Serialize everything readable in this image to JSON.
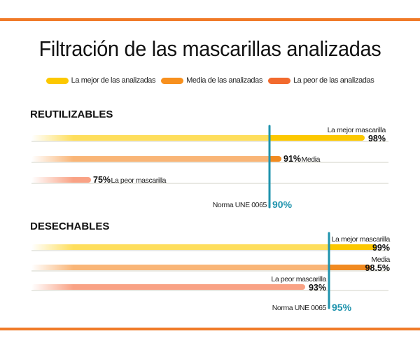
{
  "title": "Filtración de las mascarillas analizadas",
  "legend": [
    {
      "label": "La mejor de las analizadas",
      "color": "#fcc800"
    },
    {
      "label": "Media de las analizadas",
      "color": "#f7901e"
    },
    {
      "label": "La peor de las analizadas",
      "color": "#f26a2e"
    }
  ],
  "chart_data": {
    "type": "bar",
    "orientation": "horizontal",
    "unit": "%",
    "xlim": [
      70,
      100
    ],
    "groups": [
      {
        "name": "REUTILIZABLES",
        "norm": {
          "label": "Norma UNE 0065",
          "value": 90,
          "text": "90%"
        },
        "bars": [
          {
            "label": "La mejor mascarilla",
            "value": 98,
            "text": "98%",
            "color": "#fcc800",
            "light": "#fede5c",
            "label_pos": "above"
          },
          {
            "label": "Media",
            "value": 91,
            "text": "91%",
            "color": "#f18a20",
            "light": "#f9b577",
            "label_pos": "right"
          },
          {
            "label": "La peor mascarilla",
            "value": 75,
            "text": "75%",
            "color": "#f7926e",
            "light": "#f9a285",
            "label_pos": "right"
          }
        ]
      },
      {
        "name": "DESECHABLES",
        "norm": {
          "label": "Norma UNE 0065",
          "value": 95,
          "text": "95%"
        },
        "bars": [
          {
            "label": "La mejor mascarilla",
            "value": 99,
            "text": "99%",
            "color": "#fcc800",
            "light": "#fede5c",
            "label_pos": "above"
          },
          {
            "label": "Media",
            "value": 98.5,
            "text": "98.5%",
            "color": "#f18a20",
            "light": "#f9b577",
            "label_pos": "above"
          },
          {
            "label": "La peor mascarilla",
            "value": 93,
            "text": "93%",
            "color": "#f7926e",
            "light": "#f9a285",
            "label_pos": "above"
          }
        ]
      }
    ]
  }
}
